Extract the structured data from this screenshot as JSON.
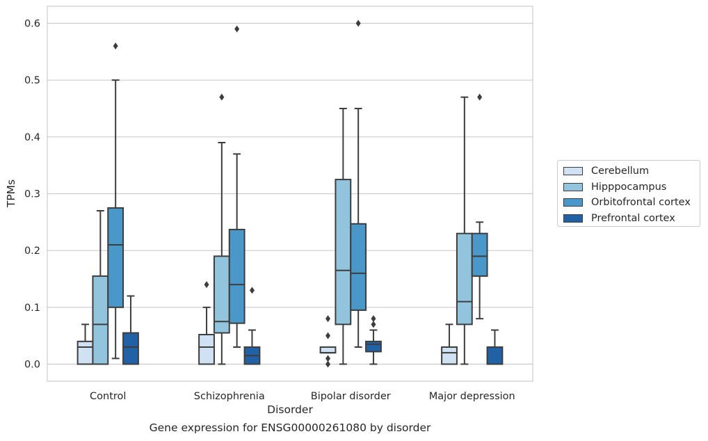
{
  "chart_data": {
    "type": "box",
    "xlabel": "Disorder",
    "ylabel": "TPMs",
    "caption": "Gene expression for ENSG00000261080 by disorder",
    "ylim": [
      -0.03,
      0.63
    ],
    "yticks": [
      0.0,
      0.1,
      0.2,
      0.3,
      0.4,
      0.5,
      0.6
    ],
    "ytick_labels": [
      "0.0",
      "0.1",
      "0.2",
      "0.3",
      "0.4",
      "0.5",
      "0.6"
    ],
    "grid": "horizontal",
    "legend_position": "right",
    "categories": [
      "Control",
      "Schizophrenia",
      "Bipolar disorder",
      "Major depression"
    ],
    "series": [
      {
        "name": "Cerebellum",
        "color": "#cfe1f2",
        "boxes": [
          {
            "whisker_low": 0.0,
            "q1": 0.0,
            "median": 0.03,
            "q3": 0.04,
            "whisker_high": 0.07,
            "outliers": []
          },
          {
            "whisker_low": 0.0,
            "q1": 0.0,
            "median": 0.03,
            "q3": 0.052,
            "whisker_high": 0.1,
            "outliers": [
              0.14
            ]
          },
          {
            "whisker_low": 0.02,
            "q1": 0.02,
            "median": 0.02,
            "q3": 0.03,
            "whisker_high": 0.03,
            "outliers": [
              0.0,
              0.01,
              0.05,
              0.08
            ]
          },
          {
            "whisker_low": 0.0,
            "q1": 0.0,
            "median": 0.02,
            "q3": 0.03,
            "whisker_high": 0.07,
            "outliers": []
          }
        ]
      },
      {
        "name": "Hipppocampus",
        "color": "#93c4de",
        "boxes": [
          {
            "whisker_low": 0.0,
            "q1": 0.0,
            "median": 0.07,
            "q3": 0.155,
            "whisker_high": 0.27,
            "outliers": []
          },
          {
            "whisker_low": 0.0,
            "q1": 0.055,
            "median": 0.075,
            "q3": 0.19,
            "whisker_high": 0.39,
            "outliers": [
              0.47
            ]
          },
          {
            "whisker_low": 0.0,
            "q1": 0.07,
            "median": 0.165,
            "q3": 0.325,
            "whisker_high": 0.45,
            "outliers": []
          },
          {
            "whisker_low": 0.0,
            "q1": 0.07,
            "median": 0.11,
            "q3": 0.23,
            "whisker_high": 0.47,
            "outliers": []
          }
        ]
      },
      {
        "name": "Orbitofrontal cortex",
        "color": "#4a98c9",
        "boxes": [
          {
            "whisker_low": 0.01,
            "q1": 0.1,
            "median": 0.21,
            "q3": 0.275,
            "whisker_high": 0.5,
            "outliers": [
              0.56
            ]
          },
          {
            "whisker_low": 0.03,
            "q1": 0.072,
            "median": 0.14,
            "q3": 0.237,
            "whisker_high": 0.37,
            "outliers": [
              0.59
            ]
          },
          {
            "whisker_low": 0.03,
            "q1": 0.095,
            "median": 0.16,
            "q3": 0.247,
            "whisker_high": 0.45,
            "outliers": [
              0.6
            ]
          },
          {
            "whisker_low": 0.08,
            "q1": 0.155,
            "median": 0.19,
            "q3": 0.23,
            "whisker_high": 0.25,
            "outliers": [
              0.47
            ]
          }
        ]
      },
      {
        "name": "Prefrontal cortex",
        "color": "#2162a6",
        "boxes": [
          {
            "whisker_low": 0.0,
            "q1": 0.0,
            "median": 0.03,
            "q3": 0.055,
            "whisker_high": 0.12,
            "outliers": []
          },
          {
            "whisker_low": 0.0,
            "q1": 0.0,
            "median": 0.015,
            "q3": 0.03,
            "whisker_high": 0.06,
            "outliers": [
              0.13
            ]
          },
          {
            "whisker_low": 0.0,
            "q1": 0.022,
            "median": 0.035,
            "q3": 0.04,
            "whisker_high": 0.06,
            "outliers": [
              0.07,
              0.08
            ]
          },
          {
            "whisker_low": 0.0,
            "q1": 0.0,
            "median": 0.0,
            "q3": 0.03,
            "whisker_high": 0.06,
            "outliers": []
          }
        ]
      }
    ]
  }
}
